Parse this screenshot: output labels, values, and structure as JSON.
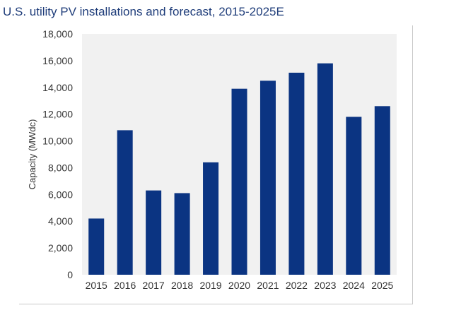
{
  "chart_data": {
    "type": "bar",
    "title": "U.S. utility PV installations and forecast, 2015-2025E",
    "xlabel": "",
    "ylabel": "Capacity (MWdc)",
    "categories": [
      "2015",
      "2016",
      "2017",
      "2018",
      "2019",
      "2020",
      "2021",
      "2022",
      "2023",
      "2024",
      "2025"
    ],
    "values": [
      4200,
      10800,
      6300,
      6100,
      8400,
      13900,
      14500,
      15100,
      15800,
      11800,
      12600
    ],
    "ylim": [
      0,
      18000
    ],
    "yticks": [
      "0",
      "2,000",
      "4,000",
      "6,000",
      "8,000",
      "10,000",
      "12,000",
      "14,000",
      "16,000",
      "18,000"
    ],
    "grid": false,
    "colors": {
      "bar": "#0b3482",
      "plot_background": "#f1f1f1",
      "title": "#1f3d7a"
    }
  }
}
